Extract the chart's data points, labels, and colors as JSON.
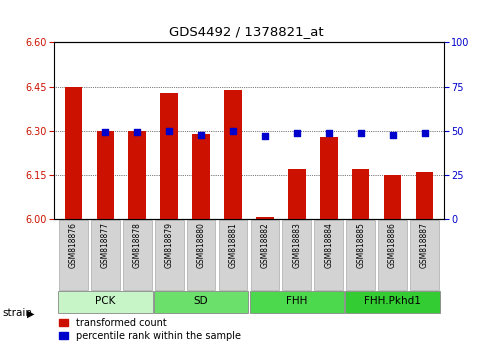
{
  "title": "GDS4492 / 1378821_at",
  "samples": [
    "GSM818876",
    "GSM818877",
    "GSM818878",
    "GSM818879",
    "GSM818880",
    "GSM818881",
    "GSM818882",
    "GSM818883",
    "GSM818884",
    "GSM818885",
    "GSM818886",
    "GSM818887"
  ],
  "red_values": [
    6.45,
    6.3,
    6.3,
    6.43,
    6.29,
    6.44,
    6.01,
    6.17,
    6.28,
    6.17,
    6.15,
    6.16
  ],
  "blue_values": [
    null,
    6.295,
    6.295,
    6.3,
    6.285,
    6.3,
    6.283,
    6.293,
    6.292,
    6.292,
    6.287,
    6.292
  ],
  "ylim_left": [
    6.0,
    6.6
  ],
  "ylim_right": [
    0,
    100
  ],
  "yticks_left": [
    6.0,
    6.15,
    6.3,
    6.45,
    6.6
  ],
  "yticks_right": [
    0,
    25,
    50,
    75,
    100
  ],
  "groups": [
    {
      "label": "PCK",
      "indices": [
        0,
        1,
        2
      ],
      "color": "#c8f5c8"
    },
    {
      "label": "SD",
      "indices": [
        3,
        4,
        5
      ],
      "color": "#6be06b"
    },
    {
      "label": "FHH",
      "indices": [
        6,
        7,
        8
      ],
      "color": "#4dd94d"
    },
    {
      "label": "FHH.Pkhd1",
      "indices": [
        9,
        10,
        11
      ],
      "color": "#33cc33"
    }
  ],
  "bar_color": "#cc1100",
  "dot_color": "#0000cc",
  "bar_width": 0.55,
  "legend_items": [
    "transformed count",
    "percentile rank within the sample"
  ],
  "legend_colors": [
    "#cc1100",
    "#0000cc"
  ],
  "right_axis_color": "#0000cc",
  "left_axis_color": "#cc1100",
  "xtick_bg": "#d3d3d3",
  "base_value": 6.0,
  "dot_size": 22,
  "group_border_color": "#888888",
  "fig_width": 4.93,
  "fig_height": 3.54
}
